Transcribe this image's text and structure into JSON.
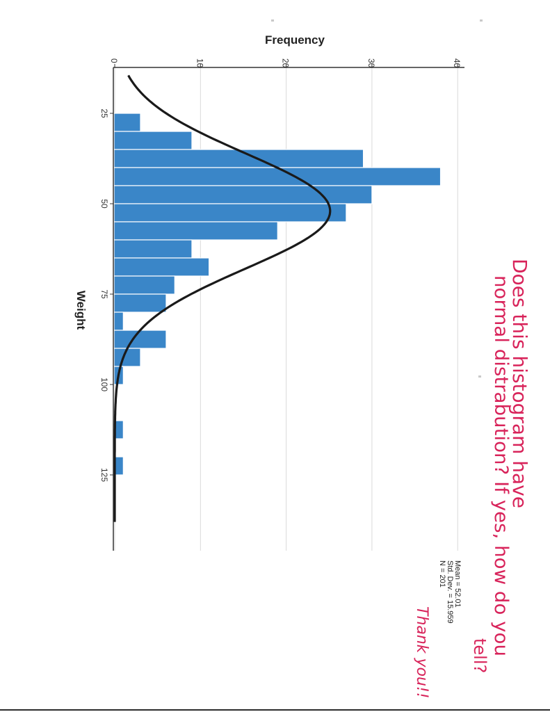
{
  "chart_data": {
    "type": "bar",
    "xlabel": "Weight",
    "ylabel": "Frequency",
    "xlim": [
      12.5,
      137.5
    ],
    "ylim": [
      0,
      40
    ],
    "x_ticks": [
      "25",
      "50",
      "75",
      "100",
      "125"
    ],
    "y_ticks": [
      "0",
      "10",
      "20",
      "30",
      "40"
    ],
    "bin_width": 5,
    "bin_starts": [
      25,
      30,
      35,
      40,
      45,
      50,
      55,
      60,
      65,
      70,
      75,
      80,
      85,
      90,
      95,
      100,
      105,
      110,
      115,
      120,
      125
    ],
    "values": [
      3,
      9,
      29,
      38,
      30,
      27,
      19,
      9,
      11,
      7,
      6,
      1,
      6,
      3,
      1,
      0,
      0,
      1,
      0,
      1,
      0
    ],
    "normal_curve": {
      "mean": 52.01,
      "std": 15.959,
      "n": 201
    },
    "stats": [
      "Mean = 52.01",
      "Std. Dev. = 15.959",
      "N = 201"
    ],
    "grid": true,
    "orientation": "rotated 90° clockwise",
    "colors": {
      "bar": "#3a86c8",
      "bar_edge": "#ffffff",
      "curve": "#1a1a1a",
      "grid": "#d9d9d9"
    }
  },
  "annotation": {
    "lines": [
      "Does this histogram have",
      "normal distrabution? If yes, how do you",
      "tell?",
      "Thank you!!"
    ],
    "color": "#d8235a"
  }
}
